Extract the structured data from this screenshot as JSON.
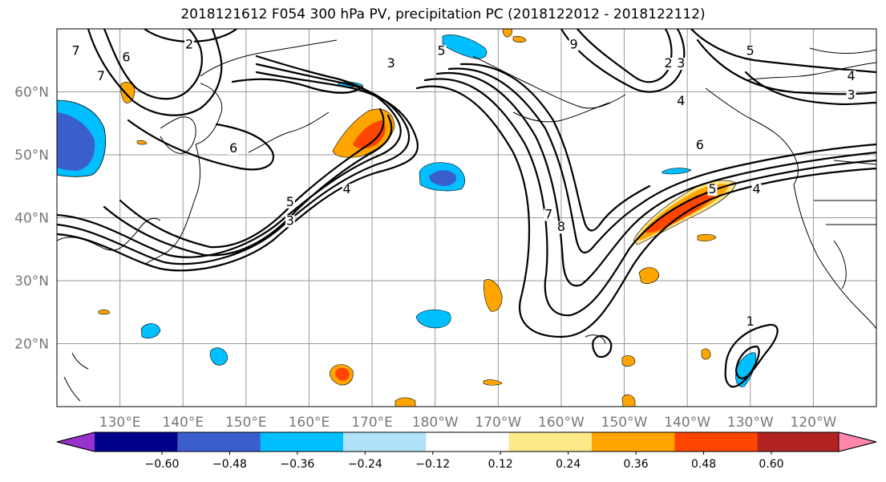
{
  "title": "2018121612 F054 300 hPa PV, precipitation PC (2018122012 - 2018122112)",
  "map": {
    "projection": "cylindrical",
    "lon_range": [
      120,
      250
    ],
    "lat_range": [
      10,
      70
    ],
    "lat_ticks": [
      {
        "lat": 60,
        "label": "60°N"
      },
      {
        "lat": 50,
        "label": "50°N"
      },
      {
        "lat": 40,
        "label": "40°N"
      },
      {
        "lat": 30,
        "label": "30°N"
      },
      {
        "lat": 20,
        "label": "20°N"
      }
    ],
    "lon_ticks": [
      {
        "lon": 130,
        "label": "130°E"
      },
      {
        "lon": 140,
        "label": "140°E"
      },
      {
        "lon": 150,
        "label": "150°E"
      },
      {
        "lon": 160,
        "label": "160°E"
      },
      {
        "lon": 170,
        "label": "170°E"
      },
      {
        "lon": 180,
        "label": "180°W"
      },
      {
        "lon": 190,
        "label": "170°W"
      },
      {
        "lon": 200,
        "label": "160°W"
      },
      {
        "lon": 210,
        "label": "150°W"
      },
      {
        "lon": 220,
        "label": "140°W"
      },
      {
        "lon": 230,
        "label": "130°W"
      },
      {
        "lon": 240,
        "label": "120°W"
      }
    ],
    "pv_contour_labels": [
      {
        "text": "2",
        "lon": 141,
        "lat": 67
      },
      {
        "text": "6",
        "lon": 131,
        "lat": 65
      },
      {
        "text": "7",
        "lon": 123,
        "lat": 66
      },
      {
        "text": "7",
        "lon": 127,
        "lat": 62
      },
      {
        "text": "6",
        "lon": 148,
        "lat": 50.5
      },
      {
        "text": "3",
        "lon": 173,
        "lat": 64
      },
      {
        "text": "4",
        "lon": 166,
        "lat": 44
      },
      {
        "text": "5",
        "lon": 157,
        "lat": 42
      },
      {
        "text": "3",
        "lon": 157,
        "lat": 39
      },
      {
        "text": "2",
        "lon": 217,
        "lat": 64
      },
      {
        "text": "3",
        "lon": 219,
        "lat": 64
      },
      {
        "text": "4",
        "lon": 219,
        "lat": 58
      },
      {
        "text": "5",
        "lon": 230,
        "lat": 66
      },
      {
        "text": "6",
        "lon": 222,
        "lat": 51
      },
      {
        "text": "5",
        "lon": 224,
        "lat": 44
      },
      {
        "text": "4",
        "lon": 231,
        "lat": 44
      },
      {
        "text": "4",
        "lon": 246,
        "lat": 62
      },
      {
        "text": "3",
        "lon": 246,
        "lat": 59
      },
      {
        "text": "7",
        "lon": 198,
        "lat": 40
      },
      {
        "text": "8",
        "lon": 200,
        "lat": 38
      },
      {
        "text": "1",
        "lon": 230,
        "lat": 23
      },
      {
        "text": "9",
        "lon": 202,
        "lat": 67
      },
      {
        "text": "5",
        "lon": 181,
        "lat": 66
      }
    ]
  },
  "colorbar": {
    "labels": [
      "−0.60",
      "−0.48",
      "−0.36",
      "−0.24",
      "−0.12",
      "0.12",
      "0.24",
      "0.36",
      "0.48",
      "0.60"
    ],
    "colors": [
      "#9932cc",
      "#00008b",
      "#3a5fcd",
      "#00bfff",
      "#b2e2fa",
      "#ffffff",
      "#fde88a",
      "#ffa500",
      "#ff4500",
      "#b22222",
      "#ff88aa"
    ]
  }
}
